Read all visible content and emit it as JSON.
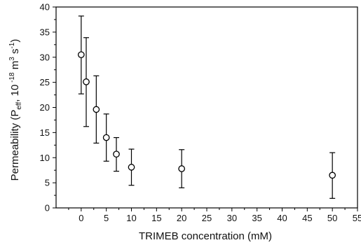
{
  "chart_data": {
    "type": "scatter",
    "title": "",
    "xlabel": "TRIMEB concentration (mM)",
    "ylabel": {
      "prefix": "Permeability (P",
      "sub": "eff",
      "mid": ", 10",
      "sup1": " -18",
      "mid2": " m",
      "sup2": "3",
      "mid3": " s",
      "sup3": "-1",
      "suffix": ")"
    },
    "xlim": [
      -5,
      55
    ],
    "ylim": [
      0,
      40
    ],
    "xticks": [
      0,
      5,
      10,
      15,
      20,
      25,
      30,
      35,
      40,
      45,
      50,
      55
    ],
    "yticks": [
      0,
      5,
      10,
      15,
      20,
      25,
      30,
      35,
      40
    ],
    "grid": false,
    "marker": "open-circle",
    "series": [
      {
        "x": [
          0,
          1,
          3,
          5,
          7,
          10,
          20,
          50
        ],
        "y": [
          30.5,
          25.1,
          19.6,
          14.0,
          10.7,
          8.1,
          7.8,
          6.5
        ],
        "yerr_low": [
          22.7,
          16.2,
          12.9,
          9.3,
          7.3,
          4.5,
          4.0,
          1.9
        ],
        "yerr_high": [
          38.2,
          33.9,
          26.3,
          18.7,
          14.0,
          11.7,
          11.6,
          11.0
        ]
      }
    ]
  }
}
